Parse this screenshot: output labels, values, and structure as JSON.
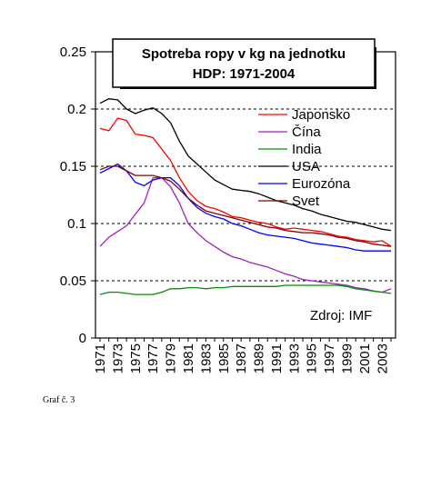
{
  "caption": "Graf č. 3",
  "colors": {
    "Japonsko": "#ff0000",
    "Čína": "#a020c0",
    "India": "#009000",
    "USA": "#000000",
    "Eurozóna": "#0000ff",
    "Svet": "#800000"
  },
  "chart_data": {
    "type": "line",
    "title": "Spotreba ropy v kg na jednotku",
    "subtitle": "HDP: 1971-2004",
    "source": "Zdroj: IMF",
    "xlabel": "",
    "ylabel": "",
    "ylim": [
      0,
      0.25
    ],
    "yticks": [
      "0",
      "0.05",
      "0.1",
      "0.15",
      "0.2",
      "0.25"
    ],
    "xticks": [
      "1971",
      "1973",
      "1975",
      "1977",
      "1979",
      "1981",
      "1983",
      "1985",
      "1987",
      "1989",
      "1991",
      "1993",
      "1995",
      "1997",
      "1999",
      "2001",
      "2003"
    ],
    "gridlines": [
      0.05,
      0.1,
      0.15,
      0.2
    ],
    "legend_position": "top-right",
    "x": [
      1971,
      1972,
      1973,
      1974,
      1975,
      1976,
      1977,
      1978,
      1979,
      1980,
      1981,
      1982,
      1983,
      1984,
      1985,
      1986,
      1987,
      1988,
      1989,
      1990,
      1991,
      1992,
      1993,
      1994,
      1995,
      1996,
      1997,
      1998,
      1999,
      2000,
      2001,
      2002,
      2003,
      2004
    ],
    "series": [
      {
        "name": "Japonsko",
        "values": [
          0.183,
          0.181,
          0.192,
          0.19,
          0.178,
          0.177,
          0.175,
          0.165,
          0.155,
          0.14,
          0.128,
          0.12,
          0.115,
          0.113,
          0.11,
          0.106,
          0.105,
          0.103,
          0.101,
          0.1,
          0.097,
          0.095,
          0.096,
          0.095,
          0.094,
          0.093,
          0.091,
          0.089,
          0.088,
          0.086,
          0.085,
          0.084,
          0.085,
          0.08
        ]
      },
      {
        "name": "Čína",
        "values": [
          0.08,
          0.088,
          0.093,
          0.098,
          0.108,
          0.118,
          0.14,
          0.14,
          0.132,
          0.118,
          0.1,
          0.092,
          0.085,
          0.08,
          0.075,
          0.071,
          0.069,
          0.066,
          0.064,
          0.062,
          0.059,
          0.056,
          0.054,
          0.051,
          0.05,
          0.049,
          0.048,
          0.047,
          0.046,
          0.044,
          0.043,
          0.041,
          0.04,
          0.043
        ]
      },
      {
        "name": "India",
        "values": [
          0.038,
          0.04,
          0.04,
          0.039,
          0.038,
          0.038,
          0.038,
          0.04,
          0.043,
          0.043,
          0.044,
          0.044,
          0.043,
          0.044,
          0.044,
          0.045,
          0.045,
          0.045,
          0.045,
          0.045,
          0.045,
          0.046,
          0.046,
          0.046,
          0.046,
          0.046,
          0.046,
          0.046,
          0.045,
          0.043,
          0.042,
          0.041,
          0.04,
          0.039
        ]
      },
      {
        "name": "USA",
        "values": [
          0.205,
          0.209,
          0.208,
          0.2,
          0.196,
          0.199,
          0.201,
          0.196,
          0.188,
          0.172,
          0.159,
          0.152,
          0.145,
          0.138,
          0.134,
          0.13,
          0.129,
          0.128,
          0.126,
          0.123,
          0.12,
          0.118,
          0.116,
          0.113,
          0.111,
          0.108,
          0.106,
          0.104,
          0.102,
          0.101,
          0.099,
          0.097,
          0.095,
          0.094
        ]
      },
      {
        "name": "Eurozóna",
        "values": [
          0.144,
          0.148,
          0.152,
          0.146,
          0.136,
          0.133,
          0.138,
          0.14,
          0.14,
          0.133,
          0.122,
          0.114,
          0.109,
          0.106,
          0.104,
          0.1,
          0.098,
          0.095,
          0.092,
          0.09,
          0.089,
          0.088,
          0.087,
          0.085,
          0.083,
          0.082,
          0.081,
          0.08,
          0.079,
          0.077,
          0.076,
          0.076,
          0.076,
          0.076
        ]
      },
      {
        "name": "Svet",
        "values": [
          0.147,
          0.15,
          0.15,
          0.146,
          0.142,
          0.142,
          0.142,
          0.14,
          0.137,
          0.13,
          0.122,
          0.116,
          0.111,
          0.109,
          0.107,
          0.105,
          0.103,
          0.101,
          0.099,
          0.097,
          0.096,
          0.094,
          0.093,
          0.092,
          0.092,
          0.091,
          0.09,
          0.088,
          0.087,
          0.085,
          0.084,
          0.082,
          0.081,
          0.08
        ]
      }
    ]
  }
}
